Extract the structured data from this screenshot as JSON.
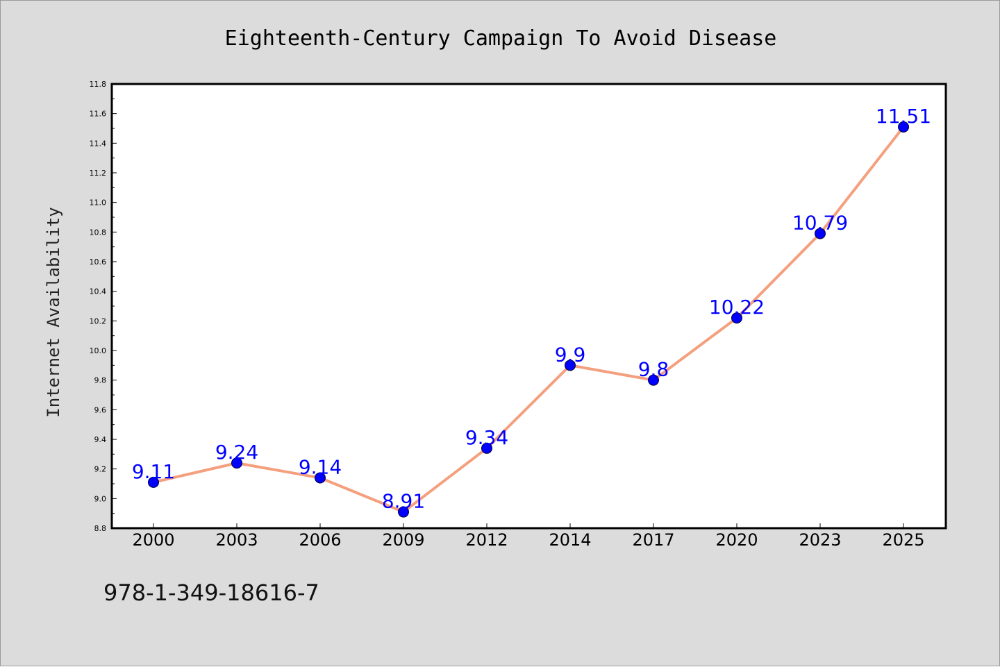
{
  "chart_data": {
    "type": "line",
    "title": "Eighteenth-Century Campaign To Avoid Disease",
    "xlabel": "",
    "ylabel": "Internet Availability",
    "categories": [
      "2000",
      "2003",
      "2006",
      "2009",
      "2012",
      "2014",
      "2017",
      "2020",
      "2023",
      "2025"
    ],
    "series": [
      {
        "values": [
          9.11,
          9.24,
          9.14,
          8.91,
          9.34,
          9.9,
          9.8,
          10.22,
          10.79,
          11.51
        ],
        "data_labels": [
          "9.11",
          "9.24",
          "9.14",
          "8.91",
          "9.34",
          "9.9",
          "9.8",
          "10.22",
          "10.79",
          "11.51"
        ],
        "line_color": "#f4a07e",
        "marker_color": "#0000ff"
      }
    ],
    "ylim": [
      8.8,
      11.8
    ],
    "yticks": [
      "8.8",
      "9.0",
      "9.2",
      "9.4",
      "9.6",
      "9.8",
      "10.0",
      "10.2",
      "10.4",
      "10.6",
      "10.8",
      "11.0",
      "11.2",
      "11.4",
      "11.6",
      "11.8"
    ],
    "grid": false,
    "legend": "none"
  },
  "footer": {
    "isbn": "978-1-349-18616-7"
  },
  "colors": {
    "figure_background": "#dcdcdc",
    "plot_background": "#ffffff",
    "label_color": "#0000ff"
  }
}
